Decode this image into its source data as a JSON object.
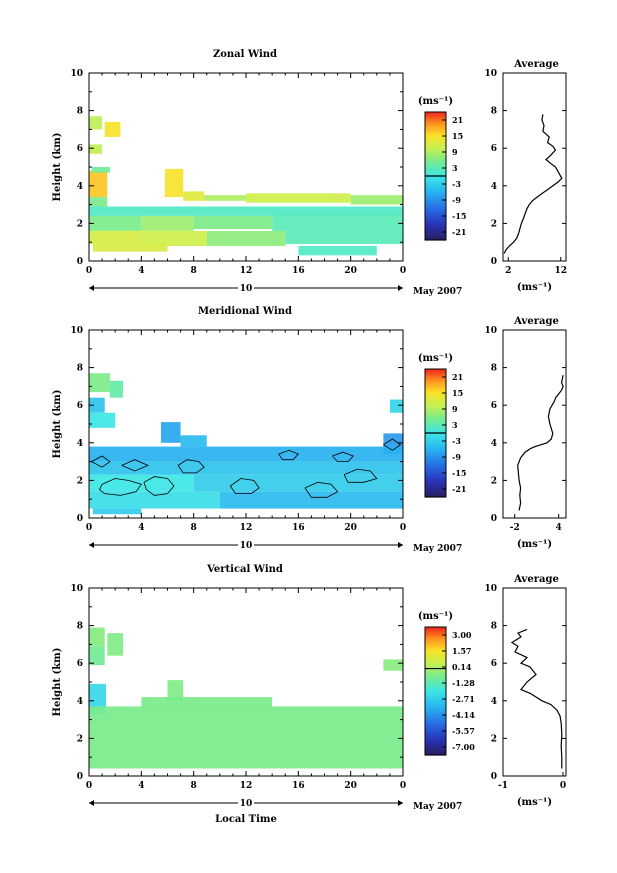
{
  "chart_data": [
    {
      "type": "heatmap",
      "title": "Zonal Wind",
      "ylabel": "Height (km)",
      "ylim": [
        0,
        10
      ],
      "yticks": [
        "0",
        "2",
        "4",
        "6",
        "8",
        "10"
      ],
      "xticks": [
        "0",
        "4",
        "8",
        "12",
        "16",
        "20",
        "0"
      ],
      "date_label": "10",
      "month_label": "May 2007",
      "colorbar": {
        "unit": "(ms⁻¹)",
        "ticks": [
          "21",
          "15",
          "9",
          "3",
          "-3",
          "-9",
          "-15",
          "-21"
        ],
        "range": [
          -24,
          24
        ]
      },
      "patches": [
        {
          "x0": 0,
          "x1": 1.0,
          "y0": 7.0,
          "y1": 7.7,
          "v": 10
        },
        {
          "x0": 0,
          "x1": 1.0,
          "y0": 5.7,
          "y1": 6.2,
          "v": 10
        },
        {
          "x0": 1.2,
          "x1": 2.4,
          "y0": 6.6,
          "y1": 7.4,
          "v": 15
        },
        {
          "x0": 0,
          "x1": 1.4,
          "y0": 3.4,
          "y1": 4.8,
          "v": 17
        },
        {
          "x0": 0,
          "x1": 1.4,
          "y0": 2.9,
          "y1": 3.4,
          "v": 6
        },
        {
          "x0": 0.2,
          "x1": 1.6,
          "y0": 4.7,
          "y1": 5.0,
          "v": 5
        },
        {
          "x0": 5.8,
          "x1": 7.2,
          "y0": 3.4,
          "y1": 4.9,
          "v": 15
        },
        {
          "x0": 7.2,
          "x1": 8.8,
          "y0": 3.2,
          "y1": 3.7,
          "v": 13
        },
        {
          "x0": 8.8,
          "x1": 12.0,
          "y0": 3.2,
          "y1": 3.5,
          "v": 9
        },
        {
          "x0": 12.0,
          "x1": 20.0,
          "y0": 3.1,
          "y1": 3.6,
          "v": 11
        },
        {
          "x0": 20.0,
          "x1": 24.0,
          "y0": 3.0,
          "y1": 3.5,
          "v": 8
        },
        {
          "x0": 0,
          "x1": 24.0,
          "y0": 2.4,
          "y1": 2.9,
          "v": 2
        },
        {
          "x0": 0,
          "x1": 4.0,
          "y0": 1.6,
          "y1": 2.4,
          "v": 6
        },
        {
          "x0": 4.0,
          "x1": 8.0,
          "y0": 1.6,
          "y1": 2.4,
          "v": 8
        },
        {
          "x0": 8.0,
          "x1": 14.0,
          "y0": 1.7,
          "y1": 2.4,
          "v": 6
        },
        {
          "x0": 14.0,
          "x1": 24.0,
          "y0": 1.6,
          "y1": 2.5,
          "v": 3
        },
        {
          "x0": 0,
          "x1": 4.0,
          "y0": 0.9,
          "y1": 1.6,
          "v": 12
        },
        {
          "x0": 4.0,
          "x1": 9.0,
          "y0": 0.8,
          "y1": 1.6,
          "v": 11
        },
        {
          "x0": 9.0,
          "x1": 15.0,
          "y0": 0.8,
          "y1": 1.6,
          "v": 7
        },
        {
          "x0": 15.0,
          "x1": 24.0,
          "y0": 0.9,
          "y1": 1.6,
          "v": 3
        },
        {
          "x0": 0.3,
          "x1": 6.0,
          "y0": 0.5,
          "y1": 0.9,
          "v": 12
        },
        {
          "x0": 16.0,
          "x1": 22.0,
          "y0": 0.3,
          "y1": 0.8,
          "v": 2
        }
      ]
    },
    {
      "type": "heatmap",
      "title": "Meridional Wind",
      "ylabel": "Height (km)",
      "ylim": [
        0,
        10
      ],
      "yticks": [
        "0",
        "2",
        "4",
        "6",
        "8",
        "10"
      ],
      "xticks": [
        "0",
        "4",
        "8",
        "12",
        "16",
        "20",
        "0"
      ],
      "date_label": "10",
      "month_label": "May 2007",
      "colorbar": {
        "unit": "(ms⁻¹)",
        "ticks": [
          "21",
          "15",
          "9",
          "3",
          "-3",
          "-9",
          "-15",
          "-21"
        ],
        "range": [
          -24,
          24
        ]
      },
      "patches": [
        {
          "x0": 0,
          "x1": 1.6,
          "y0": 6.7,
          "y1": 7.7,
          "v": 6
        },
        {
          "x0": 1.6,
          "x1": 2.6,
          "y0": 6.4,
          "y1": 7.3,
          "v": 4
        },
        {
          "x0": 0,
          "x1": 1.2,
          "y0": 5.6,
          "y1": 6.4,
          "v": -4
        },
        {
          "x0": 0,
          "x1": 2.0,
          "y0": 4.8,
          "y1": 5.6,
          "v": 0
        },
        {
          "x0": 5.5,
          "x1": 7.0,
          "y0": 4.0,
          "y1": 5.1,
          "v": -7
        },
        {
          "x0": 7.0,
          "x1": 9.0,
          "y0": 3.8,
          "y1": 4.4,
          "v": -5
        },
        {
          "x0": 23.0,
          "x1": 24.0,
          "y0": 5.6,
          "y1": 6.3,
          "v": -2
        },
        {
          "x0": 22.5,
          "x1": 24.0,
          "y0": 3.4,
          "y1": 4.5,
          "v": -8
        },
        {
          "x0": 0,
          "x1": 24.0,
          "y0": 3.0,
          "y1": 3.8,
          "v": -6
        },
        {
          "x0": 0,
          "x1": 24.0,
          "y0": 2.3,
          "y1": 3.0,
          "v": -4
        },
        {
          "x0": 0,
          "x1": 8.0,
          "y0": 1.4,
          "y1": 2.3,
          "v": 0
        },
        {
          "x0": 8.0,
          "x1": 24.0,
          "y0": 1.4,
          "y1": 2.3,
          "v": -3
        },
        {
          "x0": 0,
          "x1": 10.0,
          "y0": 0.5,
          "y1": 1.4,
          "v": -1
        },
        {
          "x0": 10.0,
          "x1": 24.0,
          "y0": 0.5,
          "y1": 1.4,
          "v": -5
        },
        {
          "x0": 0.3,
          "x1": 4.0,
          "y0": 0.2,
          "y1": 0.5,
          "v": -3
        }
      ],
      "contours": [
        {
          "x": [
            1.0,
            2.0,
            3.0,
            4.0,
            3.6,
            2.4,
            1.2,
            0.8,
            1.0
          ],
          "y": [
            1.8,
            2.1,
            2.0,
            1.8,
            1.4,
            1.2,
            1.3,
            1.5,
            1.8
          ]
        },
        {
          "x": [
            4.2,
            5.0,
            6.0,
            6.5,
            6.0,
            5.0,
            4.4,
            4.2
          ],
          "y": [
            1.9,
            2.2,
            2.1,
            1.7,
            1.3,
            1.2,
            1.5,
            1.9
          ]
        },
        {
          "x": [
            6.8,
            7.5,
            8.4,
            8.8,
            8.2,
            7.2,
            6.8
          ],
          "y": [
            2.8,
            3.1,
            3.0,
            2.7,
            2.4,
            2.4,
            2.8
          ]
        },
        {
          "x": [
            10.8,
            11.6,
            12.6,
            13.0,
            12.4,
            11.2,
            10.8
          ],
          "y": [
            1.7,
            2.1,
            2.0,
            1.6,
            1.3,
            1.3,
            1.7
          ]
        },
        {
          "x": [
            16.5,
            17.5,
            18.5,
            19.0,
            18.2,
            17.0,
            16.5
          ],
          "y": [
            1.6,
            1.9,
            1.8,
            1.4,
            1.1,
            1.1,
            1.6
          ]
        },
        {
          "x": [
            19.5,
            20.5,
            21.5,
            22.0,
            21.0,
            19.8,
            19.5
          ],
          "y": [
            2.3,
            2.6,
            2.5,
            2.1,
            1.9,
            1.9,
            2.3
          ]
        },
        {
          "x": [
            14.5,
            15.3,
            16.0,
            15.6,
            14.8,
            14.5
          ],
          "y": [
            3.4,
            3.6,
            3.4,
            3.1,
            3.1,
            3.4
          ]
        },
        {
          "x": [
            18.6,
            19.4,
            20.2,
            19.8,
            19.0,
            18.6
          ],
          "y": [
            3.3,
            3.5,
            3.3,
            3.0,
            3.0,
            3.3
          ]
        },
        {
          "x": [
            0.2,
            1.0,
            1.6,
            1.0,
            0.2
          ],
          "y": [
            3.0,
            3.3,
            3.0,
            2.7,
            3.0
          ]
        },
        {
          "x": [
            2.5,
            3.5,
            4.5,
            3.5,
            2.5
          ],
          "y": [
            2.8,
            3.1,
            2.8,
            2.5,
            2.8
          ]
        },
        {
          "x": [
            22.5,
            23.2,
            23.8,
            23.2,
            22.5
          ],
          "y": [
            3.9,
            4.2,
            3.9,
            3.6,
            3.9
          ]
        }
      ]
    },
    {
      "type": "heatmap",
      "title": "Vertical Wind",
      "xlabel": "Local Time",
      "ylabel": "Height (km)",
      "ylim": [
        0,
        10
      ],
      "yticks": [
        "0",
        "2",
        "4",
        "6",
        "8",
        "10"
      ],
      "xticks": [
        "0",
        "4",
        "8",
        "12",
        "16",
        "20",
        "0"
      ],
      "date_label": "10",
      "month_label": "May 2007",
      "colorbar": {
        "unit": "(ms⁻¹)",
        "ticks": [
          "3.00",
          "1.57",
          "0.14",
          "-1.28",
          "-2.71",
          "-4.14",
          "-5.57",
          "-7.00"
        ],
        "range": [
          -7.7,
          3.7
        ]
      },
      "patches": [
        {
          "x0": 0,
          "x1": 1.2,
          "y0": 6.9,
          "y1": 7.9,
          "v": -0.4
        },
        {
          "x0": 0,
          "x1": 1.2,
          "y0": 5.9,
          "y1": 6.9,
          "v": -0.8
        },
        {
          "x0": 1.4,
          "x1": 2.6,
          "y0": 6.4,
          "y1": 7.6,
          "v": -0.5
        },
        {
          "x0": 0,
          "x1": 1.3,
          "y0": 3.3,
          "y1": 4.9,
          "v": -2.4
        },
        {
          "x0": 6.0,
          "x1": 7.2,
          "y0": 4.0,
          "y1": 5.1,
          "v": -0.5
        },
        {
          "x0": 4.0,
          "x1": 14.0,
          "y0": 3.6,
          "y1": 4.2,
          "v": -0.6
        },
        {
          "x0": 0,
          "x1": 24.0,
          "y0": 0.4,
          "y1": 3.7,
          "v": -0.6
        },
        {
          "x0": 22.5,
          "x1": 24.0,
          "y0": 5.6,
          "y1": 6.2,
          "v": -0.4
        }
      ]
    }
  ],
  "averages": [
    {
      "title": "Average",
      "xlabel": "(ms⁻¹)",
      "xticks": [
        "2",
        "12"
      ],
      "xtick_values": [
        2,
        12
      ],
      "xlim": [
        1,
        13
      ],
      "ylim": [
        0,
        10
      ],
      "yticks": [
        "0",
        "2",
        "4",
        "6",
        "8",
        "10"
      ],
      "x": [
        1.2,
        1.6,
        2.2,
        3.0,
        3.6,
        4.0,
        4.3,
        4.5,
        4.8,
        5.2,
        5.6,
        6.0,
        6.6,
        7.5,
        8.5,
        9.5,
        10.5,
        11.5,
        12.2,
        11.6,
        11.0,
        10.0,
        9.2,
        10.0,
        11.0,
        10.5,
        9.5,
        9.8,
        8.6,
        8.8,
        8.4,
        8.6
      ],
      "y": [
        0.4,
        0.6,
        0.8,
        1.0,
        1.2,
        1.5,
        1.8,
        2.0,
        2.2,
        2.5,
        2.8,
        3.0,
        3.2,
        3.4,
        3.6,
        3.8,
        4.0,
        4.2,
        4.4,
        4.7,
        5.0,
        5.2,
        5.4,
        5.6,
        5.9,
        6.1,
        6.3,
        6.6,
        6.9,
        7.2,
        7.5,
        7.8
      ]
    },
    {
      "title": "Average",
      "xlabel": "(ms⁻¹)",
      "xticks": [
        "-2",
        "4"
      ],
      "xtick_values": [
        -2,
        4
      ],
      "xlim": [
        -3.6,
        5.0
      ],
      "ylim": [
        0,
        10
      ],
      "yticks": [
        "0",
        "2",
        "4",
        "6",
        "8",
        "10"
      ],
      "x": [
        -1.4,
        -1.2,
        -1.3,
        -1.2,
        -1.4,
        -1.5,
        -1.6,
        -1.2,
        -0.6,
        0.2,
        0.8,
        1.6,
        2.4,
        3.0,
        3.2,
        2.8,
        2.6,
        2.8,
        3.4,
        3.6,
        4.0,
        4.4,
        4.6,
        4.4,
        4.6
      ],
      "y": [
        0.4,
        0.8,
        1.2,
        1.6,
        2.0,
        2.4,
        2.8,
        3.2,
        3.5,
        3.7,
        3.8,
        3.9,
        4.0,
        4.2,
        4.5,
        5.0,
        5.4,
        5.8,
        6.2,
        6.4,
        6.6,
        6.8,
        7.0,
        7.2,
        7.6
      ]
    },
    {
      "title": "Average",
      "xlabel": "(ms⁻¹)",
      "xticks": [
        "-1",
        "0"
      ],
      "xtick_values": [
        -1,
        0
      ],
      "xlim": [
        -1.0,
        0.05
      ],
      "ylim": [
        0,
        10
      ],
      "yticks": [
        "0",
        "2",
        "4",
        "6",
        "8",
        "10"
      ],
      "x": [
        -0.02,
        -0.02,
        -0.03,
        -0.02,
        -0.03,
        -0.05,
        -0.1,
        -0.2,
        -0.35,
        -0.45,
        -0.55,
        -0.7,
        -0.6,
        -0.45,
        -0.55,
        -0.7,
        -0.6,
        -0.8,
        -0.75,
        -0.85,
        -0.7,
        -0.75,
        -0.6
      ],
      "y": [
        0.4,
        1.0,
        1.6,
        2.2,
        2.8,
        3.2,
        3.5,
        3.8,
        4.0,
        4.2,
        4.4,
        4.6,
        5.0,
        5.4,
        5.8,
        6.0,
        6.3,
        6.6,
        6.9,
        7.1,
        7.4,
        7.6,
        7.8
      ]
    }
  ]
}
